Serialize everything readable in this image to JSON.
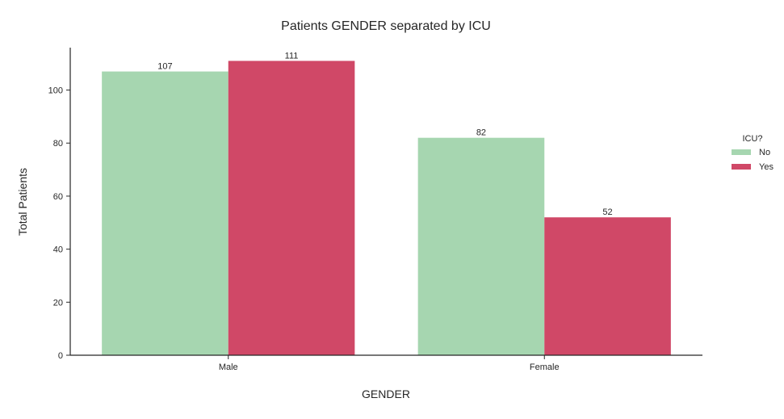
{
  "chart_data": {
    "type": "bar",
    "title": "Patients GENDER separated by ICU",
    "xlabel": "GENDER",
    "ylabel": "Total Patients",
    "categories": [
      "Male",
      "Female"
    ],
    "series": [
      {
        "name": "No",
        "values": [
          107,
          82
        ],
        "color": "#a6d6b0"
      },
      {
        "name": "Yes",
        "values": [
          111,
          52
        ],
        "color": "#d04867"
      }
    ],
    "ylim": [
      0,
      116
    ],
    "yticks": [
      0,
      20,
      40,
      60,
      80,
      100
    ],
    "grid": false,
    "legend": {
      "title": "ICU?",
      "placement": "right"
    }
  }
}
